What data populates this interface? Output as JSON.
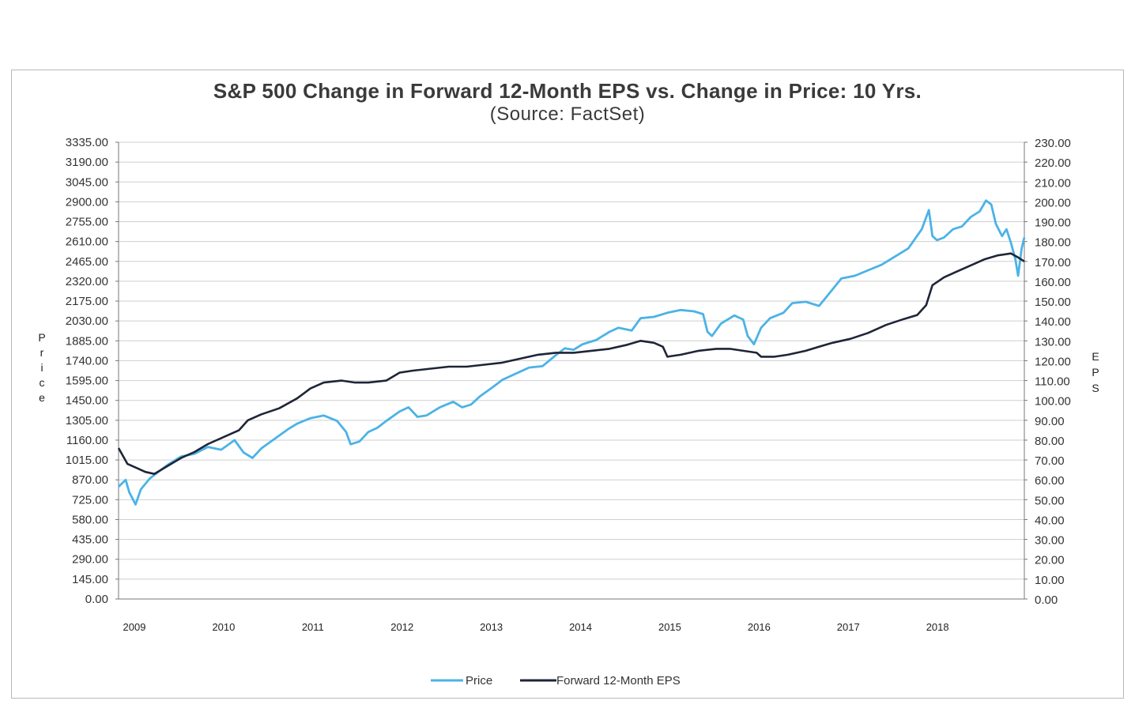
{
  "chart_data": {
    "type": "line",
    "title": "S&P 500 Change in Forward 12-Month EPS vs. Change in Price: 10 Yrs.",
    "subtitle": "(Source: FactSet)",
    "ylabel_left": "Price",
    "ylabel_right": "EPS",
    "ylim_left": [
      0,
      3335
    ],
    "ylim_right": [
      0,
      230
    ],
    "yticks_left": [
      "3335.00",
      "3190.00",
      "3045.00",
      "2900.00",
      "2755.00",
      "2610.00",
      "2465.00",
      "2320.00",
      "2175.00",
      "2030.00",
      "1885.00",
      "1740.00",
      "1595.00",
      "1450.00",
      "1305.00",
      "1160.00",
      "1015.00",
      "870.00",
      "725.00",
      "580.00",
      "435.00",
      "290.00",
      "145.00",
      "0.00"
    ],
    "yticks_right": [
      "230.00",
      "220.00",
      "210.00",
      "200.00",
      "190.00",
      "180.00",
      "170.00",
      "160.00",
      "150.00",
      "140.00",
      "130.00",
      "120.00",
      "110.00",
      "100.00",
      "90.00",
      "80.00",
      "70.00",
      "60.00",
      "50.00",
      "40.00",
      "30.00",
      "20.00",
      "10.00",
      "0.00"
    ],
    "x_labels": [
      "2009",
      "2010",
      "2011",
      "2012",
      "2013",
      "2014",
      "2015",
      "2016",
      "2017",
      "2018"
    ],
    "xlim": [
      2009.0,
      2019.15
    ],
    "grid": true,
    "legend_position": "bottom",
    "series": [
      {
        "name": "Price",
        "color": "#4bb3e6",
        "axis": "left",
        "points": [
          [
            2009.0,
            820
          ],
          [
            2009.08,
            870
          ],
          [
            2009.12,
            780
          ],
          [
            2009.19,
            690
          ],
          [
            2009.25,
            800
          ],
          [
            2009.35,
            880
          ],
          [
            2009.45,
            930
          ],
          [
            2009.55,
            980
          ],
          [
            2009.7,
            1040
          ],
          [
            2009.85,
            1060
          ],
          [
            2010.0,
            1110
          ],
          [
            2010.15,
            1090
          ],
          [
            2010.3,
            1160
          ],
          [
            2010.4,
            1070
          ],
          [
            2010.5,
            1030
          ],
          [
            2010.6,
            1100
          ],
          [
            2010.75,
            1170
          ],
          [
            2010.9,
            1240
          ],
          [
            2011.0,
            1280
          ],
          [
            2011.15,
            1320
          ],
          [
            2011.3,
            1340
          ],
          [
            2011.45,
            1300
          ],
          [
            2011.55,
            1220
          ],
          [
            2011.6,
            1130
          ],
          [
            2011.7,
            1150
          ],
          [
            2011.8,
            1220
          ],
          [
            2011.9,
            1250
          ],
          [
            2012.0,
            1300
          ],
          [
            2012.15,
            1370
          ],
          [
            2012.25,
            1400
          ],
          [
            2012.35,
            1330
          ],
          [
            2012.45,
            1340
          ],
          [
            2012.6,
            1400
          ],
          [
            2012.75,
            1440
          ],
          [
            2012.85,
            1400
          ],
          [
            2012.95,
            1420
          ],
          [
            2013.05,
            1480
          ],
          [
            2013.2,
            1550
          ],
          [
            2013.3,
            1600
          ],
          [
            2013.4,
            1630
          ],
          [
            2013.5,
            1660
          ],
          [
            2013.6,
            1690
          ],
          [
            2013.75,
            1700
          ],
          [
            2013.9,
            1780
          ],
          [
            2014.0,
            1830
          ],
          [
            2014.1,
            1820
          ],
          [
            2014.2,
            1860
          ],
          [
            2014.35,
            1890
          ],
          [
            2014.5,
            1950
          ],
          [
            2014.6,
            1980
          ],
          [
            2014.75,
            1960
          ],
          [
            2014.85,
            2050
          ],
          [
            2015.0,
            2060
          ],
          [
            2015.15,
            2090
          ],
          [
            2015.3,
            2110
          ],
          [
            2015.45,
            2100
          ],
          [
            2015.55,
            2080
          ],
          [
            2015.6,
            1950
          ],
          [
            2015.65,
            1920
          ],
          [
            2015.75,
            2010
          ],
          [
            2015.9,
            2070
          ],
          [
            2016.0,
            2040
          ],
          [
            2016.05,
            1920
          ],
          [
            2016.12,
            1860
          ],
          [
            2016.2,
            1980
          ],
          [
            2016.3,
            2050
          ],
          [
            2016.45,
            2090
          ],
          [
            2016.55,
            2160
          ],
          [
            2016.7,
            2170
          ],
          [
            2016.85,
            2140
          ],
          [
            2016.95,
            2220
          ],
          [
            2017.1,
            2340
          ],
          [
            2017.25,
            2360
          ],
          [
            2017.4,
            2400
          ],
          [
            2017.55,
            2440
          ],
          [
            2017.7,
            2500
          ],
          [
            2017.85,
            2560
          ],
          [
            2018.0,
            2700
          ],
          [
            2018.08,
            2840
          ],
          [
            2018.12,
            2650
          ],
          [
            2018.17,
            2620
          ],
          [
            2018.25,
            2640
          ],
          [
            2018.35,
            2700
          ],
          [
            2018.45,
            2720
          ],
          [
            2018.55,
            2790
          ],
          [
            2018.65,
            2830
          ],
          [
            2018.72,
            2910
          ],
          [
            2018.78,
            2880
          ],
          [
            2018.83,
            2740
          ],
          [
            2018.9,
            2650
          ],
          [
            2018.95,
            2700
          ],
          [
            2019.0,
            2600
          ],
          [
            2019.05,
            2480
          ],
          [
            2019.08,
            2360
          ],
          [
            2019.12,
            2560
          ],
          [
            2019.15,
            2640
          ]
        ]
      },
      {
        "name": "Forward 12-Month EPS",
        "color": "#1f2537",
        "axis": "right",
        "points": [
          [
            2009.0,
            76
          ],
          [
            2009.1,
            68
          ],
          [
            2009.2,
            66
          ],
          [
            2009.3,
            64
          ],
          [
            2009.4,
            63
          ],
          [
            2009.55,
            67
          ],
          [
            2009.7,
            71
          ],
          [
            2009.85,
            74
          ],
          [
            2010.0,
            78
          ],
          [
            2010.2,
            82
          ],
          [
            2010.35,
            85
          ],
          [
            2010.45,
            90
          ],
          [
            2010.6,
            93
          ],
          [
            2010.8,
            96
          ],
          [
            2011.0,
            101
          ],
          [
            2011.15,
            106
          ],
          [
            2011.3,
            109
          ],
          [
            2011.5,
            110
          ],
          [
            2011.65,
            109
          ],
          [
            2011.8,
            109
          ],
          [
            2012.0,
            110
          ],
          [
            2012.15,
            114
          ],
          [
            2012.3,
            115
          ],
          [
            2012.5,
            116
          ],
          [
            2012.7,
            117
          ],
          [
            2012.9,
            117
          ],
          [
            2013.1,
            118
          ],
          [
            2013.3,
            119
          ],
          [
            2013.5,
            121
          ],
          [
            2013.7,
            123
          ],
          [
            2013.9,
            124
          ],
          [
            2014.1,
            124
          ],
          [
            2014.3,
            125
          ],
          [
            2014.5,
            126
          ],
          [
            2014.7,
            128
          ],
          [
            2014.85,
            130
          ],
          [
            2015.0,
            129
          ],
          [
            2015.1,
            127
          ],
          [
            2015.15,
            122
          ],
          [
            2015.3,
            123
          ],
          [
            2015.5,
            125
          ],
          [
            2015.7,
            126
          ],
          [
            2015.85,
            126
          ],
          [
            2016.0,
            125
          ],
          [
            2016.15,
            124
          ],
          [
            2016.2,
            122
          ],
          [
            2016.35,
            122
          ],
          [
            2016.5,
            123
          ],
          [
            2016.7,
            125
          ],
          [
            2016.85,
            127
          ],
          [
            2017.0,
            129
          ],
          [
            2017.2,
            131
          ],
          [
            2017.4,
            134
          ],
          [
            2017.6,
            138
          ],
          [
            2017.8,
            141
          ],
          [
            2017.95,
            143
          ],
          [
            2018.05,
            148
          ],
          [
            2018.12,
            158
          ],
          [
            2018.25,
            162
          ],
          [
            2018.4,
            165
          ],
          [
            2018.55,
            168
          ],
          [
            2018.7,
            171
          ],
          [
            2018.85,
            173
          ],
          [
            2019.0,
            174
          ],
          [
            2019.08,
            172
          ],
          [
            2019.15,
            170
          ]
        ]
      }
    ]
  },
  "legend": {
    "price": "Price",
    "eps": "Forward 12-Month EPS"
  }
}
